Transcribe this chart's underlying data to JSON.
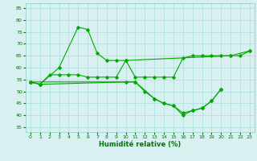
{
  "xlabel": "Humidité relative (%)",
  "background_color": "#d8f0f0",
  "grid_color": "#aadddd",
  "line_color": "#00aa00",
  "xlim": [
    -0.5,
    23.5
  ],
  "ylim": [
    33,
    87
  ],
  "yticks": [
    35,
    40,
    45,
    50,
    55,
    60,
    65,
    70,
    75,
    80,
    85
  ],
  "xticks": [
    0,
    1,
    2,
    3,
    4,
    5,
    6,
    7,
    8,
    9,
    10,
    11,
    12,
    13,
    14,
    15,
    16,
    17,
    18,
    19,
    20,
    21,
    22,
    23
  ],
  "line1_x": [
    0,
    1,
    3,
    5,
    6,
    7,
    8,
    9,
    10,
    21,
    23
  ],
  "line1_y": [
    54,
    53,
    60,
    77,
    76,
    66,
    63,
    63,
    63,
    65,
    67
  ],
  "line2_x": [
    0,
    1,
    2,
    3,
    4,
    5,
    6,
    7,
    8,
    9,
    10,
    11,
    12,
    13,
    14,
    15,
    16,
    17,
    18,
    19,
    20,
    21,
    22,
    23
  ],
  "line2_y": [
    54,
    53,
    57,
    57,
    57,
    57,
    56,
    56,
    56,
    56,
    63,
    56,
    56,
    56,
    56,
    56,
    64,
    65,
    65,
    65,
    65,
    65,
    65,
    67
  ],
  "line3_x": [
    0,
    1,
    10,
    11,
    12,
    13,
    14,
    15,
    16,
    17,
    18,
    19,
    20
  ],
  "line3_y": [
    54,
    53,
    54,
    54,
    50,
    47,
    45,
    44,
    41,
    42,
    43,
    46,
    51
  ],
  "line4_x": [
    0,
    11,
    13,
    14,
    15,
    16,
    17,
    18,
    19,
    20
  ],
  "line4_y": [
    54,
    54,
    47,
    45,
    44,
    40,
    42,
    43,
    46,
    51
  ]
}
